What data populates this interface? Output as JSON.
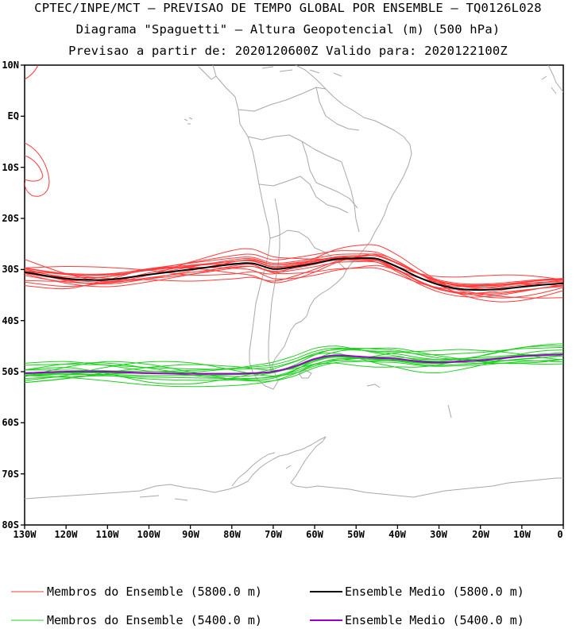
{
  "title": {
    "line1": "CPTEC/INPE/MCT — PREVISAO DE TEMPO GLOBAL POR ENSEMBLE — TQ0126L028",
    "line2": "Diagrama \"Spaguetti\" — Altura Geopotencial (m) (500 hPa)",
    "line3": "Previsao a partir de: 2020120600Z  Valido para: 2020122100Z"
  },
  "axes": {
    "lat_labels": [
      "10N",
      "EQ",
      "10S",
      "20S",
      "30S",
      "40S",
      "50S",
      "60S",
      "70S",
      "80S"
    ],
    "lon_labels": [
      "130W",
      "120W",
      "110W",
      "100W",
      "90W",
      "80W",
      "70W",
      "60W",
      "50W",
      "40W",
      "30W",
      "20W",
      "10W",
      "0"
    ]
  },
  "legend": {
    "item1": "Membros do Ensemble (5800.0 m)",
    "item2": "Ensemble Medio (5800.0 m)",
    "item3": "Membros do Ensemble (5400.0 m)",
    "item4": "Ensemble Medio (5400.0 m)"
  },
  "colors": {
    "members_5800": "#ff3b3b",
    "mean_5800": "#000000",
    "members_5400": "#1fcf1f",
    "mean_5400": "#9900cc",
    "coastline": "#a8a8a8"
  },
  "map_extent": {
    "lon_min": -130,
    "lon_max": 0,
    "lat_min": -80,
    "lat_max": 10
  },
  "contours": {
    "mean_5800": {
      "lon": [
        -130,
        -120,
        -110,
        -100,
        -90,
        -80,
        -75,
        -70,
        -65,
        -60,
        -55,
        -50,
        -45,
        -40,
        -35,
        -30,
        -25,
        -20,
        -15,
        -10,
        -5,
        0
      ],
      "lat": [
        -30.5,
        -31.8,
        -32.0,
        -31.0,
        -30.0,
        -29.0,
        -28.8,
        -29.9,
        -29.5,
        -28.8,
        -28.0,
        -27.8,
        -27.9,
        -29.5,
        -31.5,
        -33.0,
        -33.8,
        -34.0,
        -33.8,
        -33.4,
        -33.0,
        -32.7
      ]
    },
    "mean_5400": {
      "lon": [
        -130,
        -120,
        -110,
        -100,
        -90,
        -80,
        -75,
        -70,
        -65,
        -60,
        -55,
        -50,
        -45,
        -40,
        -35,
        -30,
        -25,
        -20,
        -15,
        -10,
        -5,
        0
      ],
      "lat": [
        -50.3,
        -50.0,
        -50.0,
        -50.3,
        -50.4,
        -50.4,
        -50.3,
        -50.0,
        -49.0,
        -47.5,
        -46.8,
        -47.0,
        -47.3,
        -47.5,
        -48.0,
        -48.2,
        -48.0,
        -47.8,
        -47.4,
        -47.0,
        -46.8,
        -46.6
      ]
    }
  }
}
